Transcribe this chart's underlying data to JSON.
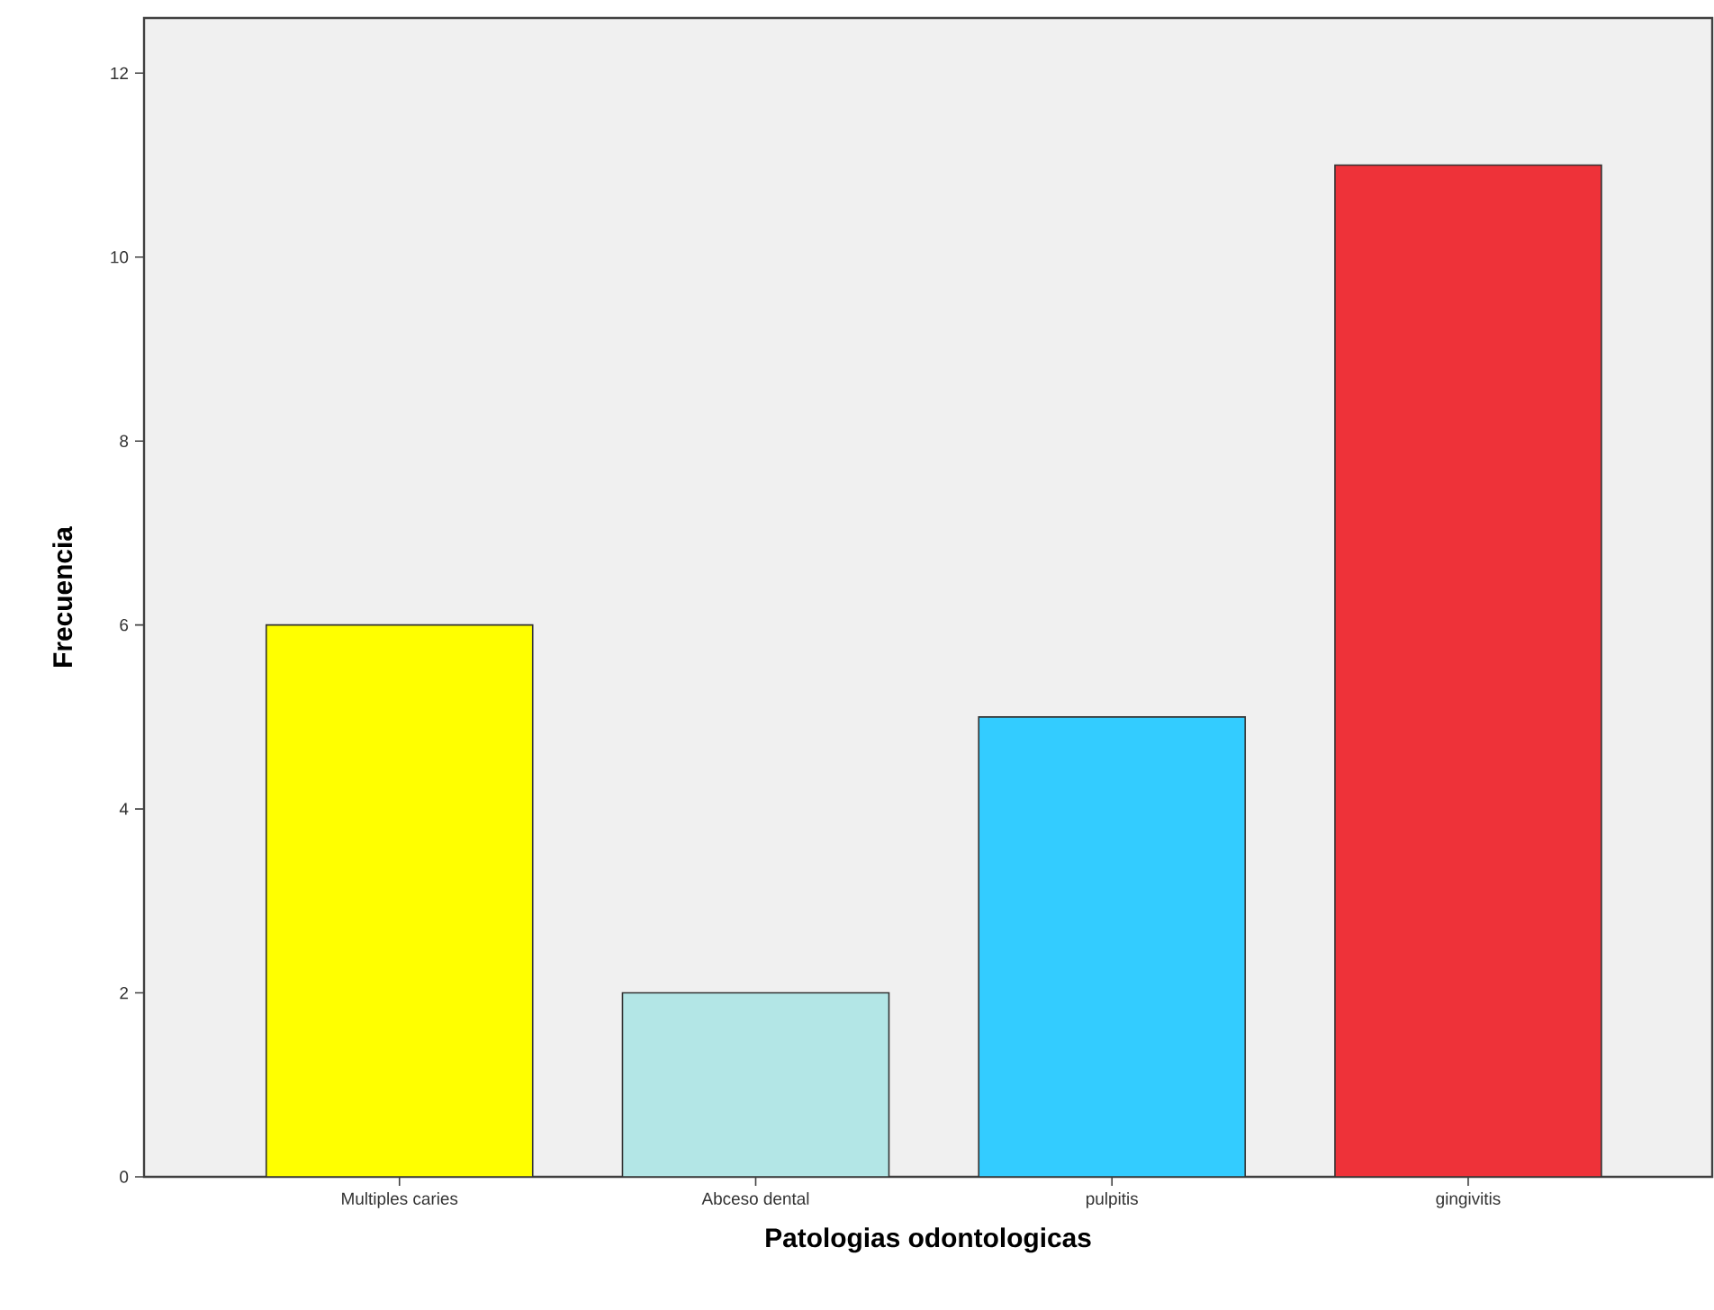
{
  "chart_data": {
    "type": "bar",
    "xlabel": "Patologias odontologicas",
    "ylabel": "Frecuencia",
    "categories": [
      "Multiples caries",
      "Abceso dental",
      "pulpitis",
      "gingivitis"
    ],
    "values": [
      6,
      2,
      5,
      11
    ],
    "colors": [
      "#ffff00",
      "#b3e6e6",
      "#33ccff",
      "#ee3239"
    ],
    "ylim": [
      0,
      12.6
    ],
    "yticks": [
      0,
      2,
      4,
      6,
      8,
      10,
      12
    ]
  }
}
